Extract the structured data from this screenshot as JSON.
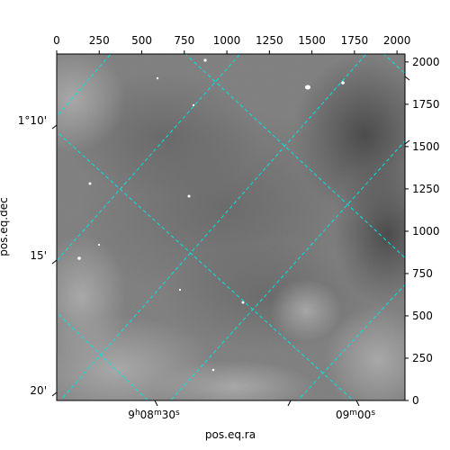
{
  "chart_data": {
    "type": "heatmap",
    "colormap": "gray",
    "grid": true,
    "grid_color": "#00e5e5",
    "xlabel": "pos.eq.ra",
    "ylabel": "pos.eq.dec",
    "pixel_x": {
      "ticks": [
        0,
        250,
        500,
        750,
        1000,
        1250,
        1500,
        1750,
        2000
      ],
      "xlim": [
        0,
        2047
      ]
    },
    "pixel_y": {
      "ticks": [
        0,
        250,
        500,
        750,
        1000,
        1250,
        1500,
        1750,
        2000
      ],
      "ylim": [
        0,
        2047
      ]
    },
    "ra_ticks": [
      {
        "hours": "9",
        "minutes": "08",
        "seconds": "30"
      },
      {
        "hours": "9",
        "minutes": "09",
        "seconds": "00"
      }
    ],
    "dec_ticks": [
      {
        "label": "1°10'"
      },
      {
        "label": "15'"
      },
      {
        "label": "20'"
      }
    ],
    "ra_unit_h": "h",
    "ra_unit_m": "m",
    "ra_unit_s": "s"
  }
}
